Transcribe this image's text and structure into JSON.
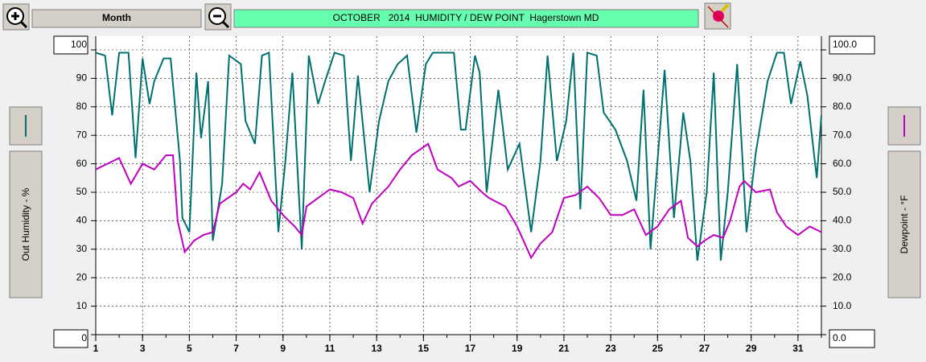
{
  "toolbar": {
    "range": "Month"
  },
  "chart_data": {
    "type": "line",
    "title": "OCTOBER   2014  HUMIDITY / DEW POINT  Hagerstown MD",
    "y_label": "Out Humidity - %",
    "y2_label": "Dewpoint - °F",
    "xlim": [
      1,
      32
    ],
    "xticks": [
      1,
      3,
      5,
      7,
      9,
      11,
      13,
      15,
      17,
      19,
      21,
      23,
      25,
      27,
      29,
      31
    ],
    "ylim": [
      0,
      100
    ],
    "yticks": [
      0,
      10,
      20,
      30,
      40,
      50,
      60,
      70,
      80,
      90,
      100
    ],
    "y2lim": [
      0,
      100
    ],
    "y2ticks": [
      {
        "value": 0,
        "label": "0.0"
      },
      {
        "value": 10,
        "label": "10.0"
      },
      {
        "value": 20,
        "label": "20.0"
      },
      {
        "value": 30,
        "label": "30.0"
      },
      {
        "value": 40,
        "label": "40.0"
      },
      {
        "value": 50,
        "label": "50.0"
      },
      {
        "value": 60,
        "label": "60.0"
      },
      {
        "value": 70,
        "label": "70.0"
      },
      {
        "value": 80,
        "label": "80.0"
      },
      {
        "value": 90,
        "label": "90.0"
      },
      {
        "value": 100,
        "label": "100.0"
      }
    ],
    "grid": true,
    "series": [
      {
        "color": "#007070",
        "x": [
          1,
          1.4,
          1.7,
          2.0,
          2.4,
          2.7,
          3.0,
          3.3,
          3.5,
          3.9,
          4.2,
          4.6,
          4.7,
          5.0,
          5.3,
          5.5,
          5.8,
          6.0,
          6.4,
          6.7,
          7.2,
          7.4,
          7.8,
          8.1,
          8.4,
          8.8,
          9.1,
          9.4,
          9.8,
          10.1,
          10.5,
          10.8,
          11.2,
          11.6,
          11.9,
          12.2,
          12.7,
          13.1,
          13.5,
          13.9,
          14.3,
          14.7,
          15.1,
          15.4,
          15.8,
          16.3,
          16.6,
          16.8,
          17.2,
          17.4,
          17.7,
          18.2,
          18.6,
          19.1,
          19.6,
          20.0,
          20.3,
          20.7,
          21.1,
          21.4,
          21.7,
          22.0,
          22.4,
          22.7,
          23.2,
          23.7,
          24.1,
          24.4,
          24.7,
          25.0,
          25.3,
          25.7,
          26.1,
          26.4,
          26.7,
          27.1,
          27.4,
          27.7,
          28.0,
          28.4,
          28.8,
          29.2,
          29.7,
          30.1,
          30.4,
          30.7,
          31.1,
          31.4,
          31.8,
          32.0
        ],
        "values": [
          99,
          98,
          77,
          99,
          99,
          62,
          97,
          81,
          89,
          97,
          97,
          61,
          41,
          36,
          92,
          69,
          89,
          33,
          53,
          98,
          95,
          75,
          67,
          98,
          99,
          36,
          61,
          92,
          30,
          98,
          81,
          89,
          99,
          98,
          61,
          91,
          50,
          75,
          89,
          95,
          98,
          71,
          95,
          99,
          99,
          99,
          72,
          72,
          98,
          92,
          50,
          86,
          58,
          67,
          36,
          61,
          98,
          61,
          75,
          99,
          44,
          99,
          98,
          78,
          72,
          61,
          47,
          86,
          30,
          61,
          93,
          41,
          78,
          61,
          26,
          50,
          92,
          26,
          50,
          95,
          36,
          64,
          89,
          99,
          99,
          81,
          96,
          84,
          55,
          77
        ]
      },
      {
        "color": "#c000c0",
        "axis": "y2",
        "x": [
          1,
          1.5,
          2,
          2.5,
          3,
          3.5,
          4,
          4.3,
          4.5,
          4.8,
          5.2,
          5.6,
          6,
          6.3,
          7,
          7.3,
          7.6,
          8,
          8.5,
          9,
          9.5,
          9.8,
          10,
          10.5,
          11,
          11.5,
          12,
          12.4,
          12.8,
          13.5,
          14,
          14.5,
          15.2,
          15.6,
          16.2,
          16.5,
          17,
          17.5,
          17.8,
          18.5,
          19,
          19.6,
          20,
          20.5,
          21,
          21.5,
          22,
          22.5,
          23,
          23.5,
          24,
          24.5,
          25,
          25.5,
          26,
          26.3,
          26.7,
          27,
          27.4,
          27.8,
          28.1,
          28.5,
          28.7,
          29.2,
          29.8,
          30.1,
          30.5,
          31,
          31.5,
          32
        ],
        "values": [
          58,
          60,
          62,
          53,
          60,
          58,
          63,
          63,
          40,
          29,
          33,
          35,
          36,
          46,
          50,
          53,
          51,
          57,
          47,
          42,
          38,
          35,
          45,
          48,
          51,
          50,
          48,
          39,
          46,
          52,
          58,
          63,
          67,
          58,
          55,
          52,
          54,
          50,
          48,
          45,
          38,
          27,
          32,
          36,
          48,
          49,
          52,
          48,
          42,
          42,
          44,
          35,
          38,
          44,
          47,
          34,
          31,
          33,
          35,
          34,
          40,
          52,
          54,
          50,
          51,
          43,
          38,
          35,
          38,
          36
        ]
      }
    ]
  }
}
